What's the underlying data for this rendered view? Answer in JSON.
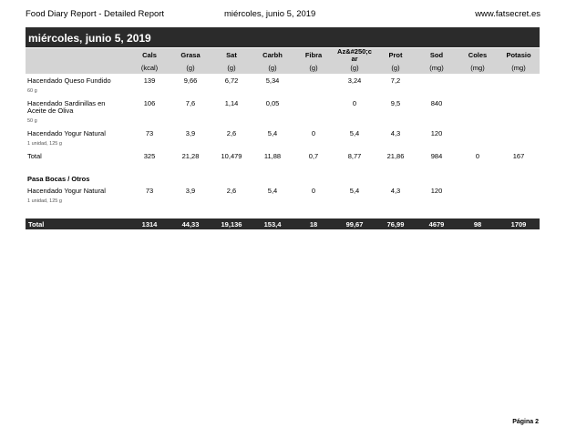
{
  "header": {
    "title": "Food Diary Report - Detailed Report",
    "date": "miércoles, junio 5, 2019",
    "site": "www.fatsecret.es"
  },
  "day_title": "miércoles, junio 5, 2019",
  "columns": [
    {
      "name": "Cals",
      "unit": "(kcal)"
    },
    {
      "name": "Grasa",
      "unit": "(g)"
    },
    {
      "name": "Sat",
      "unit": "(g)"
    },
    {
      "name": "Carbh",
      "unit": "(g)"
    },
    {
      "name": "Fibra",
      "unit": "(g)"
    },
    {
      "name": "Az&#250;c ar",
      "unit": "(g)"
    },
    {
      "name": "Prot",
      "unit": "(g)"
    },
    {
      "name": "Sod",
      "unit": "(mg)"
    },
    {
      "name": "Coles",
      "unit": "(mg)"
    },
    {
      "name": "Potasio",
      "unit": "(mg)"
    }
  ],
  "items": [
    {
      "name": "Hacendado Queso Fundido",
      "portion": "60 g",
      "values": [
        "139",
        "9,66",
        "6,72",
        "5,34",
        "",
        "3,24",
        "7,2",
        "",
        "",
        ""
      ]
    },
    {
      "name": "Hacendado Sardinillas en",
      "name2": "Aceite de Oliva",
      "portion": "50 g",
      "values": [
        "106",
        "7,6",
        "1,14",
        "0,05",
        "",
        "0",
        "9,5",
        "840",
        "",
        ""
      ]
    },
    {
      "name": "Hacendado Yogur Natural",
      "portion": "1 unidad, 125 g",
      "values": [
        "73",
        "3,9",
        "2,6",
        "5,4",
        "0",
        "5,4",
        "4,3",
        "120",
        "",
        ""
      ]
    }
  ],
  "subtotal": {
    "label": "Total",
    "values": [
      "325",
      "21,28",
      "10,479",
      "11,88",
      "0,7",
      "8,77",
      "21,86",
      "984",
      "0",
      "167"
    ]
  },
  "section2": {
    "title": "Pasa Bocas / Otros",
    "item": {
      "name": "Hacendado Yogur Natural",
      "portion": "1 unidad, 125 g",
      "values": [
        "73",
        "3,9",
        "2,6",
        "5,4",
        "0",
        "5,4",
        "4,3",
        "120",
        "",
        ""
      ]
    }
  },
  "total": {
    "label": "Total",
    "values": [
      "1314",
      "44,33",
      "19,136",
      "153,4",
      "18",
      "99,67",
      "76,99",
      "4679",
      "98",
      "1709"
    ]
  },
  "page_label": "Página 2"
}
